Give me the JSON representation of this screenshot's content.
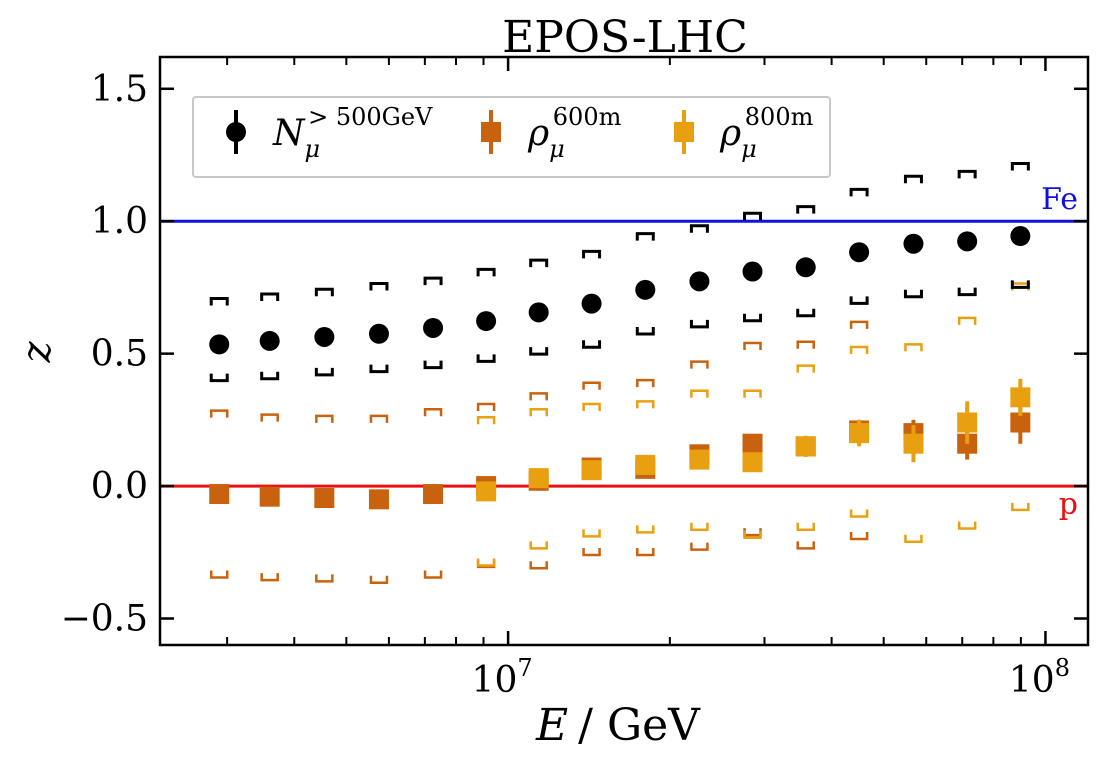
{
  "chart_data": {
    "type": "scatter",
    "title": "EPOS-LHC",
    "xlabel_var": "E",
    "xlabel_unit": "/ GeV",
    "ylabel": "z",
    "xscale": "log",
    "xlim": [
      2250000,
      120000000
    ],
    "ylim": [
      -0.6,
      1.62
    ],
    "y_ticks": [
      -0.5,
      0.0,
      0.5,
      1.0,
      1.5
    ],
    "y_tick_labels": [
      "−0.5",
      "0.0",
      "0.5",
      "1.0",
      "1.5"
    ],
    "x_major_ticks": [
      10000000,
      100000000
    ],
    "x_tick_labels": [
      {
        "base": "10",
        "exp": "7"
      },
      {
        "base": "10",
        "exp": "8"
      }
    ],
    "x_minor_ticks": [
      3000000,
      4000000,
      5000000,
      6000000,
      7000000,
      8000000,
      9000000,
      20000000,
      30000000,
      40000000,
      50000000,
      60000000,
      70000000,
      80000000,
      90000000
    ],
    "reference_lines": [
      {
        "name": "Fe",
        "y": 1.0,
        "color": "#1010e0"
      },
      {
        "name": "p",
        "y": 0.0,
        "color": "#e81010"
      }
    ],
    "legend_position": "top-left",
    "series": [
      {
        "name": "N_mu >500GeV",
        "legend": {
          "sym": "N",
          "sub": "μ",
          "sup": "> 500GeV"
        },
        "color": "#000000",
        "marker": "circle",
        "x": [
          2900000,
          3600000,
          4550000,
          5750000,
          7250000,
          9100000,
          11400000,
          14300000,
          18000000,
          22700000,
          28500000,
          35800000,
          45000000,
          56800000,
          71500000,
          89800000
        ],
        "y": [
          0.535,
          0.548,
          0.563,
          0.575,
          0.597,
          0.623,
          0.656,
          0.689,
          0.741,
          0.773,
          0.81,
          0.826,
          0.883,
          0.915,
          0.924,
          0.944
        ],
        "err": [
          0.007,
          0.007,
          0.007,
          0.007,
          0.007,
          0.007,
          0.007,
          0.008,
          0.008,
          0.008,
          0.008,
          0.009,
          0.01,
          0.01,
          0.011,
          0.012
        ],
        "sys_high": [
          0.708,
          0.725,
          0.743,
          0.765,
          0.785,
          0.818,
          0.853,
          0.886,
          0.953,
          0.983,
          1.03,
          1.055,
          1.12,
          1.17,
          1.188,
          1.218
        ],
        "sys_low": [
          0.398,
          0.405,
          0.42,
          0.432,
          0.447,
          0.471,
          0.498,
          0.524,
          0.574,
          0.601,
          0.624,
          0.643,
          0.69,
          0.715,
          0.723,
          0.75
        ]
      },
      {
        "name": "rho_mu 600m",
        "legend": {
          "sym": "ρ",
          "sub": "μ",
          "sup": "600m"
        },
        "color": "#c9620e",
        "marker": "square",
        "x": [
          2900000,
          3600000,
          4550000,
          5750000,
          7250000,
          9100000,
          11400000,
          14300000,
          18000000,
          22700000,
          28500000,
          35800000,
          45000000,
          56800000,
          71500000,
          89800000
        ],
        "y": [
          -0.03,
          -0.04,
          -0.045,
          -0.05,
          -0.03,
          0.0,
          0.02,
          0.07,
          0.065,
          0.12,
          0.16,
          0.15,
          0.21,
          0.2,
          0.16,
          0.24
        ],
        "err": [
          0.02,
          0.02,
          0.02,
          0.02,
          0.02,
          0.02,
          0.02,
          0.02,
          0.02,
          0.03,
          0.03,
          0.03,
          0.04,
          0.05,
          0.06,
          0.08
        ],
        "sys_high": [
          0.285,
          0.27,
          0.265,
          0.265,
          0.29,
          0.31,
          0.35,
          0.39,
          0.4,
          0.47,
          0.54,
          0.545,
          0.62,
          null,
          null,
          null
        ],
        "sys_low": [
          -0.345,
          -0.355,
          -0.36,
          -0.365,
          -0.345,
          -0.305,
          -0.31,
          -0.26,
          -0.26,
          -0.24,
          -0.185,
          -0.235,
          -0.2,
          null,
          null,
          null
        ]
      },
      {
        "name": "rho_mu 800m",
        "legend": {
          "sym": "ρ",
          "sub": "μ",
          "sup": "800m"
        },
        "color": "#e8a010",
        "marker": "square",
        "x": [
          9100000,
          11400000,
          14300000,
          18000000,
          22700000,
          28500000,
          35800000,
          45000000,
          56800000,
          71500000,
          89800000
        ],
        "y": [
          -0.02,
          0.03,
          0.06,
          0.08,
          0.1,
          0.09,
          0.15,
          0.2,
          0.16,
          0.24,
          0.335
        ],
        "err": [
          0.02,
          0.02,
          0.02,
          0.03,
          0.03,
          0.03,
          0.04,
          0.05,
          0.07,
          0.08,
          0.07
        ],
        "sys_high": [
          0.26,
          0.29,
          0.31,
          0.32,
          0.36,
          0.36,
          0.455,
          0.525,
          0.535,
          0.635,
          0.765
        ],
        "sys_low": [
          -0.3,
          -0.235,
          -0.19,
          -0.175,
          -0.165,
          -0.195,
          -0.165,
          -0.115,
          -0.21,
          -0.16,
          -0.09
        ]
      }
    ]
  }
}
